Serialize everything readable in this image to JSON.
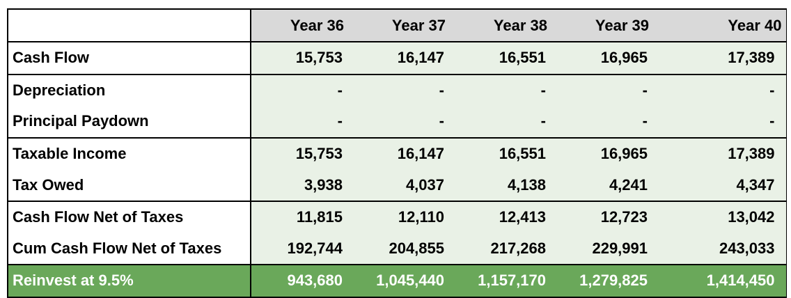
{
  "columns": [
    "Year 36",
    "Year 37",
    "Year 38",
    "Year 39",
    "Year 40"
  ],
  "rows": [
    {
      "label": "Cash Flow",
      "values": [
        "15,753",
        "16,147",
        "16,551",
        "16,965",
        "17,389"
      ]
    },
    {
      "label": "Depreciation",
      "values": [
        "-",
        "-",
        "-",
        "-",
        "-"
      ]
    },
    {
      "label": "Principal Paydown",
      "values": [
        "-",
        "-",
        "-",
        "-",
        "-"
      ]
    },
    {
      "label": "Taxable Income",
      "values": [
        "15,753",
        "16,147",
        "16,551",
        "16,965",
        "17,389"
      ]
    },
    {
      "label": "Tax Owed",
      "values": [
        "3,938",
        "4,037",
        "4,138",
        "4,241",
        "4,347"
      ]
    },
    {
      "label": "Cash Flow Net of Taxes",
      "values": [
        "11,815",
        "12,110",
        "12,413",
        "12,723",
        "13,042"
      ]
    },
    {
      "label": "Cum Cash Flow Net of Taxes",
      "values": [
        "192,744",
        "204,855",
        "217,268",
        "229,991",
        "243,033"
      ]
    },
    {
      "label": "Reinvest at 9.5%",
      "values": [
        "943,680",
        "1,045,440",
        "1,157,170",
        "1,279,825",
        "1,414,450"
      ]
    }
  ],
  "colors": {
    "header_bg": "#d9d9d9",
    "row_bg": "#e9f1e6",
    "total_bg": "#6aa85a",
    "total_text": "#ffffff"
  }
}
